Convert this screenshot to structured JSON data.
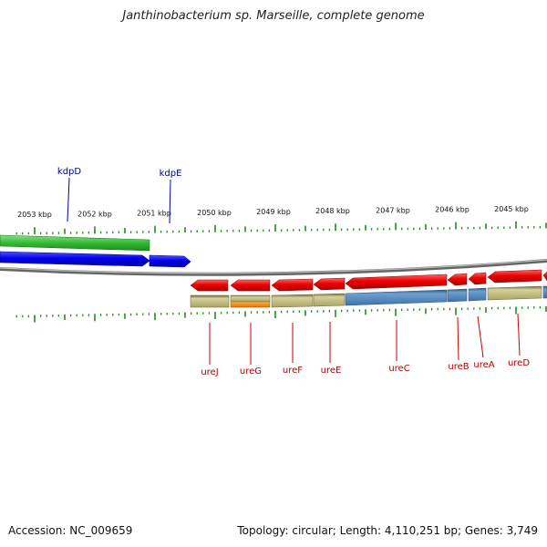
{
  "title": "Janthinobacterium sp. Marseille, complete genome",
  "footer": {
    "accession": "Accession: NC_009659",
    "stats": "Topology: circular; Length: 4,110,251 bp; Genes: 3,749"
  },
  "scale_labels": [
    "2053 kbp",
    "2052 kbp",
    "2051 kbp",
    "2050 kbp",
    "2049 kbp",
    "2048 kbp",
    "2047 kbp",
    "2046 kbp",
    "2045 kbp"
  ],
  "genes_forward": [
    {
      "name": "kdpD",
      "label_color": "#000080"
    },
    {
      "name": "kdpE",
      "label_color": "#000080"
    }
  ],
  "genes_reverse": [
    {
      "name": "ureJ",
      "label_color": "#b00000"
    },
    {
      "name": "ureG",
      "label_color": "#b00000"
    },
    {
      "name": "ureF",
      "label_color": "#b00000"
    },
    {
      "name": "ureE",
      "label_color": "#b00000"
    },
    {
      "name": "ureC",
      "label_color": "#b00000"
    },
    {
      "name": "ureB",
      "label_color": "#b00000"
    },
    {
      "name": "ureA",
      "label_color": "#b00000"
    },
    {
      "name": "ureD",
      "label_color": "#b00000"
    }
  ],
  "colors": {
    "forward_cds": "#0000ee",
    "reverse_cds": "#ee0000",
    "forward_function": "#33bb33",
    "reverse_function_olive": "#b5b070",
    "reverse_function_blue": "#4a7fb5",
    "reverse_function_orange": "#ff8800",
    "backbone": "#888888",
    "ticks": "#228b22"
  }
}
